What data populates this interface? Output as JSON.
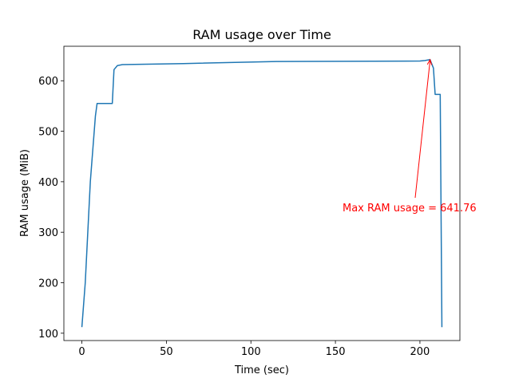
{
  "chart_data": {
    "type": "line",
    "title": "RAM usage over Time",
    "x_label": "Time (sec)",
    "y_label": "RAM usage (MiB)",
    "x": [
      0,
      2,
      5,
      8,
      9,
      18,
      19,
      21,
      24,
      60,
      115,
      200,
      203,
      206,
      208,
      209,
      212,
      213
    ],
    "series": [
      {
        "name": "RAM usage",
        "color": "#1f77b4",
        "values": [
          112,
          200,
          400,
          530,
          555,
          555,
          622,
          630,
          632,
          634,
          638,
          639,
          640,
          641.76,
          625,
          573,
          573,
          112
        ]
      }
    ],
    "xlim": [
      -10.65,
      223.65
    ],
    "xticks": [
      0,
      50,
      100,
      150,
      200
    ],
    "ylim": [
      85.5,
      668.3
    ],
    "yticks": [
      100,
      200,
      300,
      400,
      500,
      600
    ],
    "annotation": {
      "text": "Max RAM usage = 641.76",
      "color": "red"
    },
    "grid": false
  }
}
